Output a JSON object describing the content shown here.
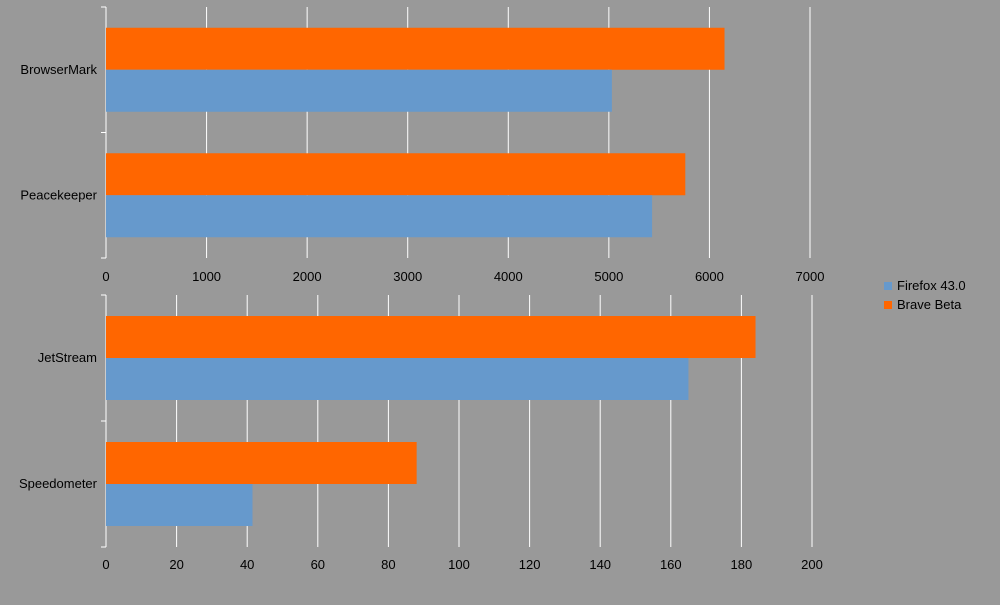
{
  "colors": {
    "background": "#999999",
    "grid": "#ffffff",
    "firefox": "#6699cc",
    "brave": "#ff6600"
  },
  "legend": {
    "placement": "right",
    "items": [
      {
        "label": "Firefox 43.0",
        "color": "#6699cc"
      },
      {
        "label": "Brave Beta",
        "color": "#ff6600"
      }
    ]
  },
  "chart_data": [
    {
      "type": "bar",
      "orientation": "horizontal",
      "categories": [
        "BrowserMark",
        "Peacekeeper"
      ],
      "series": [
        {
          "name": "Firefox 43.0",
          "values": [
            5030,
            5430
          ]
        },
        {
          "name": "Brave Beta",
          "values": [
            6150,
            5760
          ]
        }
      ],
      "xlim": [
        0,
        7000
      ],
      "xticks": [
        "0",
        "1000",
        "2000",
        "3000",
        "4000",
        "5000",
        "6000",
        "7000"
      ],
      "grid": true
    },
    {
      "type": "bar",
      "orientation": "horizontal",
      "categories": [
        "JetStream",
        "Speedometer"
      ],
      "series": [
        {
          "name": "Firefox 43.0",
          "values": [
            165,
            41.5
          ]
        },
        {
          "name": "Brave Beta",
          "values": [
            184,
            88
          ]
        }
      ],
      "xlim": [
        0,
        200
      ],
      "xticks": [
        "0",
        "20",
        "40",
        "60",
        "80",
        "100",
        "120",
        "140",
        "160",
        "180",
        "200"
      ],
      "grid": true
    }
  ]
}
